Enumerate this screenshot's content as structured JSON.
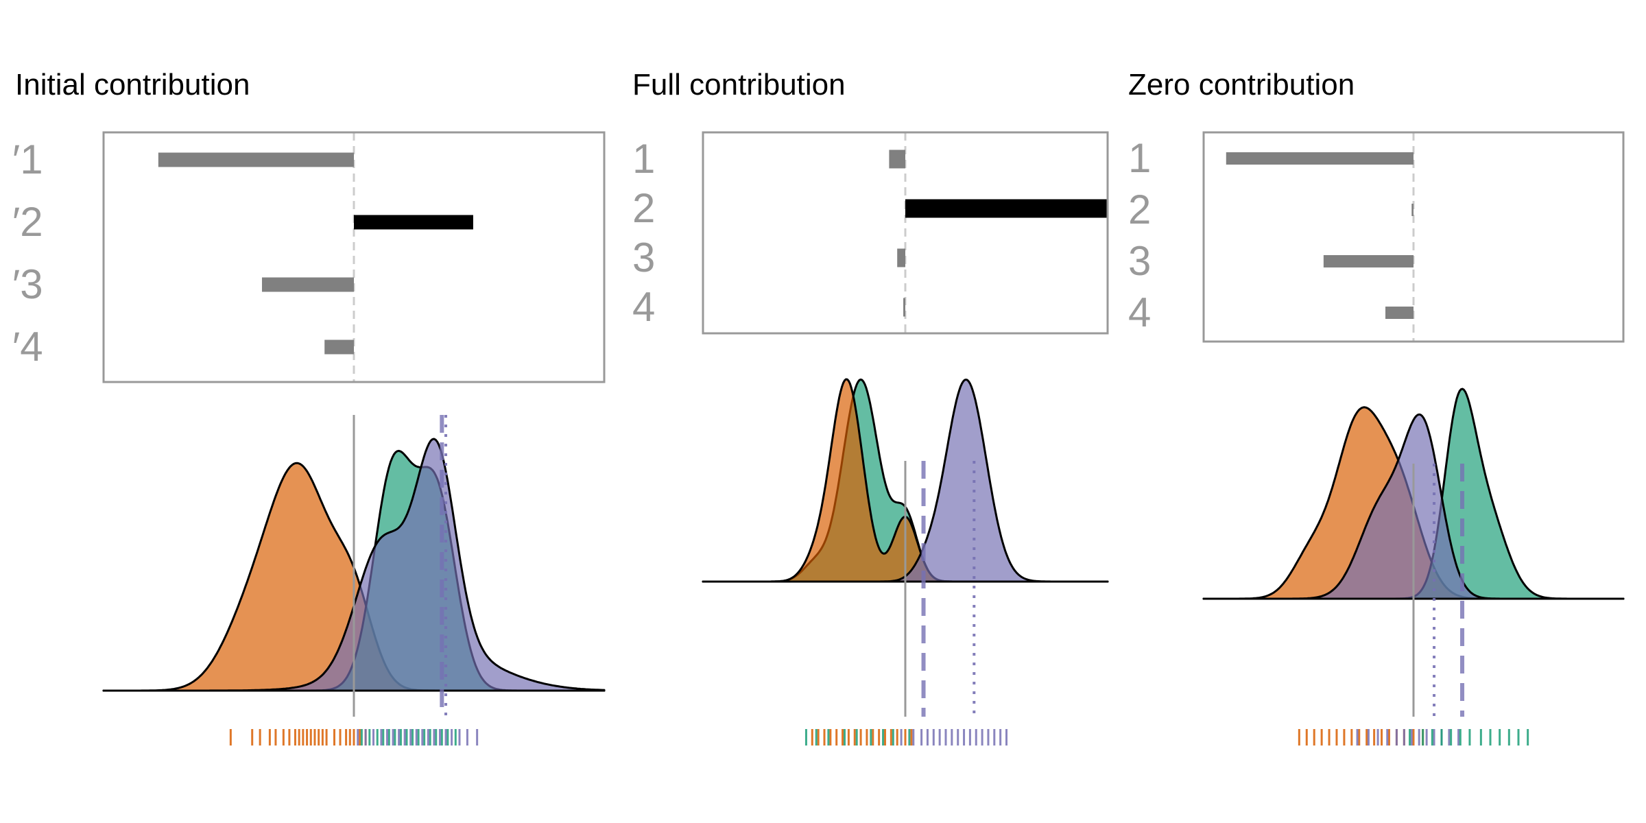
{
  "colors": {
    "orange": "#d95f02",
    "green": "#1b9e77",
    "purple": "#7570b3",
    "frame": "#999999",
    "zero_line": "#cccccc",
    "median_line": "#999999",
    "bar_gray": "#808080",
    "bar_black": "#000000"
  },
  "panels": [
    {
      "title": "Initial contribution",
      "bars": {
        "labels": [
          "′1",
          "′2",
          "′3",
          "′4"
        ],
        "values": [
          -1.0,
          0.61,
          -0.47,
          -0.15
        ],
        "highlight": [
          false,
          true,
          false,
          false
        ],
        "xlim": [
          -1.28,
          1.28
        ]
      },
      "density": {
        "xlim": [
          -1.28,
          1.28
        ],
        "median_x": 0.0,
        "dashed_x": 0.45,
        "dotted_x": 0.47,
        "series": [
          {
            "key": "orange",
            "components": [
              [
                -0.28,
                0.16,
                1.0
              ],
              [
                0.0,
                0.1,
                0.35
              ],
              [
                -0.55,
                0.14,
                0.25
              ]
            ]
          },
          {
            "key": "green",
            "components": [
              [
                0.2,
                0.1,
                1.0
              ],
              [
                0.42,
                0.1,
                0.9
              ]
            ]
          },
          {
            "key": "purple",
            "components": [
              [
                0.14,
                0.13,
                0.55
              ],
              [
                0.42,
                0.1,
                0.9
              ],
              [
                0.4,
                0.3,
                0.2
              ]
            ]
          }
        ],
        "rugs": {
          "orange": [
            -0.63,
            -0.52,
            -0.48,
            -0.43,
            -0.4,
            -0.36,
            -0.33,
            -0.3,
            -0.28,
            -0.26,
            -0.24,
            -0.22,
            -0.2,
            -0.18,
            -0.16,
            -0.14,
            -0.1,
            -0.07,
            -0.04,
            -0.02,
            0.0,
            0.03,
            0.06
          ],
          "green": [
            0.04,
            0.08,
            0.12,
            0.15,
            0.18,
            0.21,
            0.24,
            0.27,
            0.3,
            0.33,
            0.36,
            0.39,
            0.42,
            0.45,
            0.48,
            0.52
          ],
          "purple": [
            0.02,
            0.06,
            0.1,
            0.14,
            0.17,
            0.2,
            0.23,
            0.26,
            0.29,
            0.32,
            0.35,
            0.38,
            0.41,
            0.44,
            0.47,
            0.5,
            0.54,
            0.58,
            0.63
          ]
        }
      }
    },
    {
      "title": "Full contribution",
      "bars": {
        "labels": [
          "1",
          "2",
          "3",
          "4"
        ],
        "values": [
          -0.08,
          1.0,
          -0.04,
          -0.01
        ],
        "highlight": [
          false,
          true,
          false,
          false
        ],
        "xlim": [
          -1.0,
          1.0
        ]
      },
      "density": {
        "xlim": [
          -1.0,
          1.0
        ],
        "median_x": 0.0,
        "dashed_x": 0.09,
        "dotted_x": 0.34,
        "series": [
          {
            "key": "green",
            "components": [
              [
                -0.22,
                0.09,
                1.0
              ],
              [
                0.0,
                0.06,
                0.32
              ],
              [
                -0.45,
                0.06,
                0.08
              ]
            ]
          },
          {
            "key": "orange",
            "components": [
              [
                -0.29,
                0.08,
                1.0
              ],
              [
                0.0,
                0.06,
                0.32
              ],
              [
                -0.45,
                0.06,
                0.08
              ]
            ]
          },
          {
            "key": "purple",
            "components": [
              [
                0.3,
                0.1,
                1.0
              ],
              [
                0.1,
                0.06,
                0.06
              ]
            ]
          }
        ],
        "rugs": {
          "orange": [
            -0.46,
            -0.43,
            -0.4,
            -0.37,
            -0.34,
            -0.31,
            -0.28,
            -0.25,
            -0.22,
            -0.19,
            -0.16,
            -0.13,
            -0.1,
            -0.07,
            -0.04,
            0.0,
            0.03
          ],
          "green": [
            -0.49,
            -0.44,
            -0.38,
            -0.3,
            -0.24,
            -0.17,
            -0.11,
            -0.06,
            0.02
          ],
          "purple": [
            -0.02,
            0.04,
            0.08,
            0.11,
            0.14,
            0.17,
            0.2,
            0.23,
            0.26,
            0.29,
            0.32,
            0.35,
            0.38,
            0.41,
            0.44,
            0.47,
            0.5
          ]
        }
      }
    },
    {
      "title": "Zero contribution",
      "bars": {
        "labels": [
          "1",
          "2",
          "3",
          "4"
        ],
        "values": [
          -1.0,
          -0.01,
          -0.48,
          -0.15
        ],
        "highlight": [
          false,
          false,
          false,
          false
        ],
        "xlim": [
          -1.12,
          1.12
        ]
      },
      "density": {
        "xlim": [
          -1.12,
          1.12
        ],
        "median_x": 0.0,
        "dashed_x": 0.26,
        "dotted_x": 0.11,
        "series": [
          {
            "key": "orange",
            "components": [
              [
                -0.3,
                0.12,
                1.0
              ],
              [
                -0.08,
                0.12,
                0.65
              ],
              [
                -0.55,
                0.1,
                0.25
              ]
            ]
          },
          {
            "key": "green",
            "components": [
              [
                0.24,
                0.08,
                1.0
              ],
              [
                0.38,
                0.11,
                0.55
              ]
            ]
          },
          {
            "key": "purple",
            "components": [
              [
                0.05,
                0.1,
                1.0
              ],
              [
                -0.17,
                0.12,
                0.55
              ]
            ]
          }
        ],
        "rugs": {
          "orange": [
            -0.61,
            -0.57,
            -0.53,
            -0.49,
            -0.45,
            -0.41,
            -0.37,
            -0.33,
            -0.29,
            -0.25,
            -0.21,
            -0.17,
            -0.13,
            -0.09,
            -0.05,
            0.0,
            0.05
          ],
          "purple": [
            -0.3,
            -0.24,
            -0.19,
            -0.14,
            -0.09,
            -0.05,
            -0.01,
            0.03,
            0.07,
            0.11,
            0.15,
            0.19,
            0.24
          ],
          "green": [
            -0.02,
            0.05,
            0.1,
            0.15,
            0.2,
            0.25,
            0.3,
            0.36,
            0.41,
            0.46,
            0.51,
            0.56,
            0.61
          ]
        }
      }
    }
  ]
}
